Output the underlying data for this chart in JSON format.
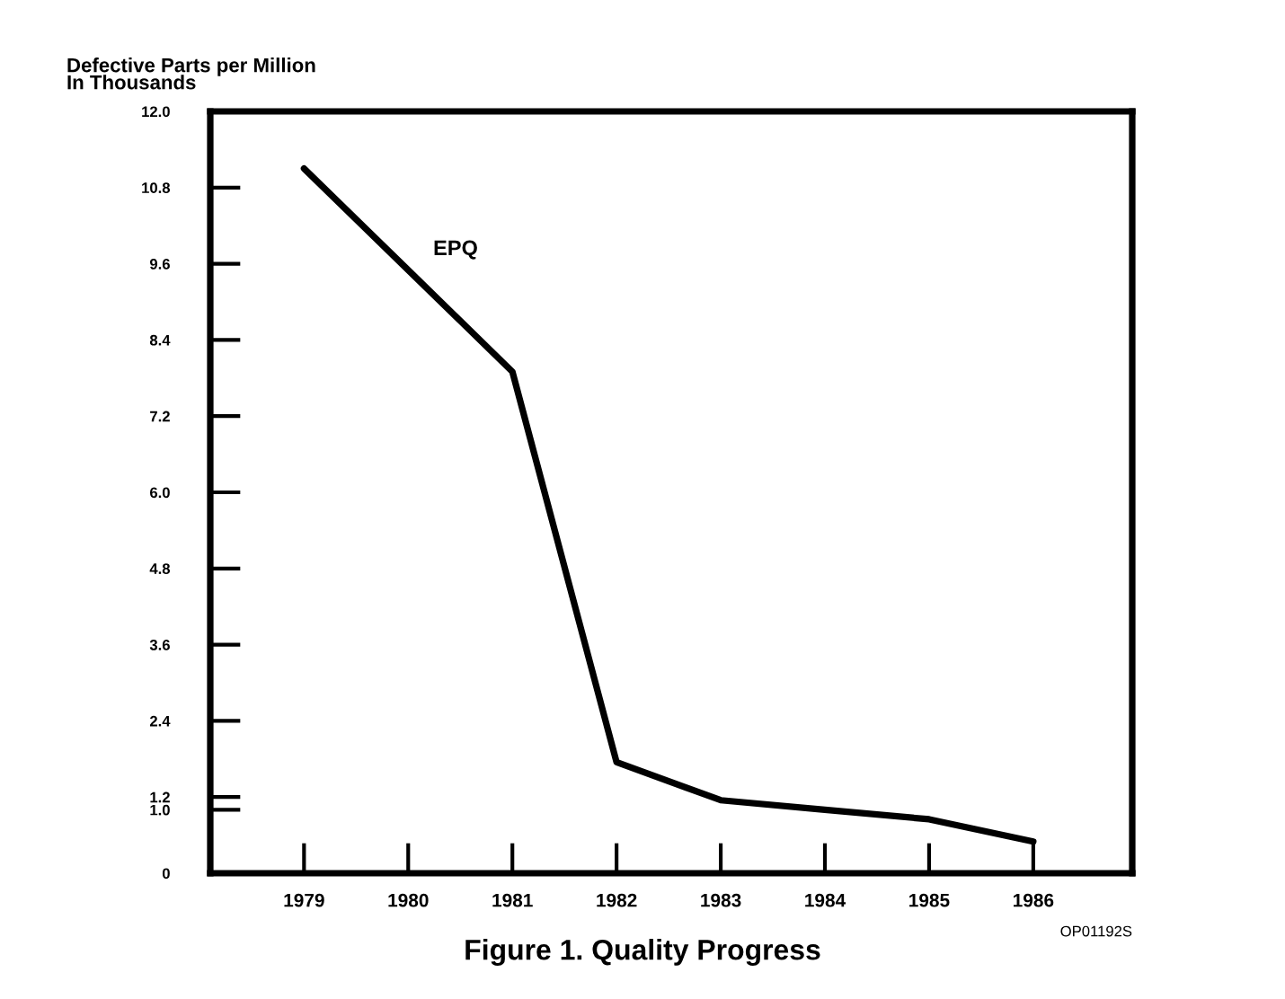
{
  "chart_data": {
    "type": "line",
    "title": "Figure 1. Quality Progress",
    "ylabel": "Defective Parts per Million\nIn Thousands",
    "categories": [
      "1979",
      "1980",
      "1981",
      "1982",
      "1983",
      "1984",
      "1985",
      "1986"
    ],
    "series": [
      {
        "name": "EPQ",
        "color": "#000000",
        "values": [
          11.1,
          9.5,
          7.9,
          1.75,
          1.15,
          1.0,
          0.85,
          0.5
        ]
      }
    ],
    "ylim": [
      0,
      12.0
    ],
    "yticks": [
      {
        "value": 0,
        "label": "0"
      },
      {
        "value": 1.0,
        "label": "1.0"
      },
      {
        "value": 1.2,
        "label": "1.2"
      },
      {
        "value": 2.4,
        "label": "2.4"
      },
      {
        "value": 3.6,
        "label": "3.6"
      },
      {
        "value": 4.8,
        "label": "4.8"
      },
      {
        "value": 6.0,
        "label": "6.0"
      },
      {
        "value": 7.2,
        "label": "7.2"
      },
      {
        "value": 8.4,
        "label": "8.4"
      },
      {
        "value": 9.6,
        "label": "9.6"
      },
      {
        "value": 10.8,
        "label": "10.8"
      },
      {
        "value": 12.0,
        "label": "12.0"
      }
    ],
    "grid": false,
    "legend": false,
    "marker": "none",
    "line_style": "solid",
    "annotations": [
      "OP01192S"
    ]
  }
}
